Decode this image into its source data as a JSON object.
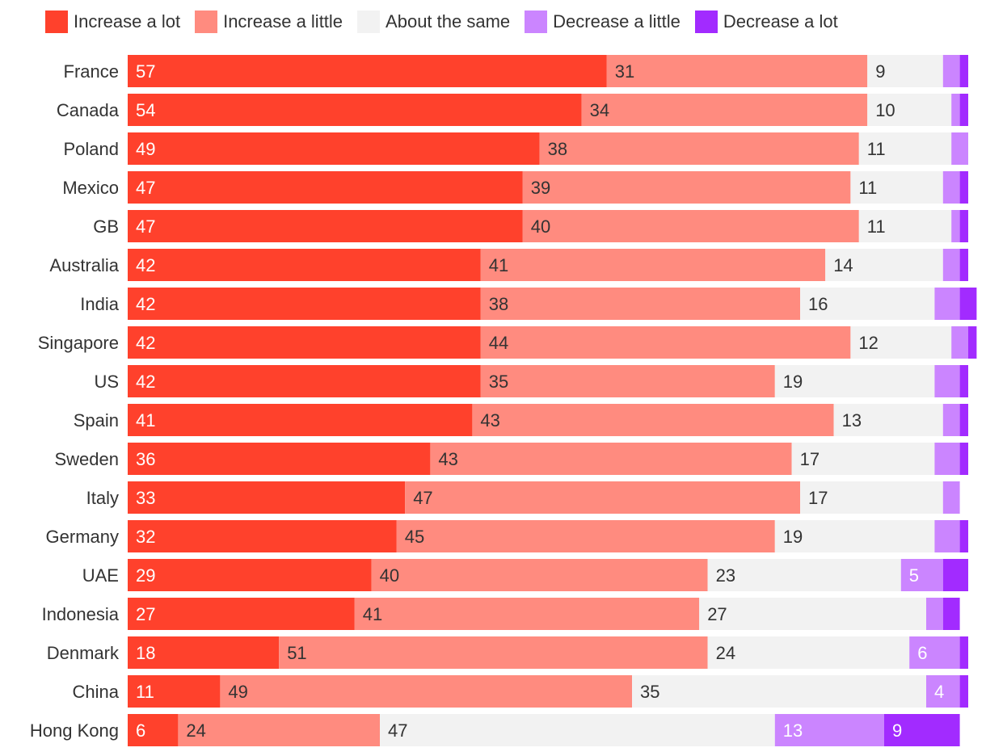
{
  "chart_data": {
    "type": "bar",
    "orientation": "horizontal",
    "stacked": true,
    "grid": false,
    "legend_position": "top",
    "xlim": [
      0,
      100
    ],
    "categories": [
      "France",
      "Canada",
      "Poland",
      "Mexico",
      "GB",
      "Australia",
      "India",
      "Singapore",
      "US",
      "Spain",
      "Sweden",
      "Italy",
      "Germany",
      "UAE",
      "Indonesia",
      "Denmark",
      "China",
      "Hong Kong"
    ],
    "series": [
      {
        "name": "Increase a lot",
        "color": "#FF412C",
        "values": [
          57,
          54,
          49,
          47,
          47,
          42,
          42,
          42,
          42,
          41,
          36,
          33,
          32,
          29,
          27,
          18,
          11,
          6
        ],
        "labels": [
          "57",
          "54",
          "49",
          "47",
          "47",
          "42",
          "42",
          "42",
          "42",
          "41",
          "36",
          "33",
          "32",
          "29",
          "27",
          "18",
          "11",
          "6"
        ]
      },
      {
        "name": "Increase a little",
        "color": "#FF8B7F",
        "values": [
          31,
          34,
          38,
          39,
          40,
          41,
          38,
          44,
          35,
          43,
          43,
          47,
          45,
          40,
          41,
          51,
          49,
          24
        ],
        "labels": [
          "31",
          "34",
          "38",
          "39",
          "40",
          "41",
          "38",
          "44",
          "35",
          "43",
          "43",
          "47",
          "45",
          "40",
          "41",
          "51",
          "49",
          "24"
        ]
      },
      {
        "name": "About the same",
        "color": "#F2F2F2",
        "values": [
          9,
          10,
          11,
          11,
          11,
          14,
          16,
          12,
          19,
          13,
          17,
          17,
          19,
          23,
          27,
          24,
          35,
          47
        ],
        "labels": [
          "9",
          "10",
          "11",
          "11",
          "11",
          "14",
          "16",
          "12",
          "19",
          "13",
          "17",
          "17",
          "19",
          "23",
          "27",
          "24",
          "35",
          "47"
        ]
      },
      {
        "name": "Decrease a little",
        "color": "#CB85FF",
        "values": [
          2,
          1,
          2,
          2,
          1,
          2,
          3,
          2,
          3,
          2,
          3,
          2,
          3,
          5,
          2,
          6,
          4,
          13
        ],
        "labels": [
          "",
          "",
          "",
          "",
          "",
          "",
          "",
          "",
          "",
          "",
          "",
          "",
          "",
          "5",
          "",
          "6",
          "4",
          "13"
        ]
      },
      {
        "name": "Decrease a lot",
        "color": "#A22BFF",
        "values": [
          1,
          1,
          0,
          1,
          1,
          1,
          2,
          1,
          1,
          1,
          1,
          0,
          1,
          3,
          2,
          1,
          1,
          9
        ],
        "labels": [
          "",
          "",
          "",
          "",
          "",
          "",
          "",
          "",
          "",
          "",
          "",
          "",
          "",
          "",
          "",
          "",
          "",
          "9"
        ]
      }
    ]
  }
}
